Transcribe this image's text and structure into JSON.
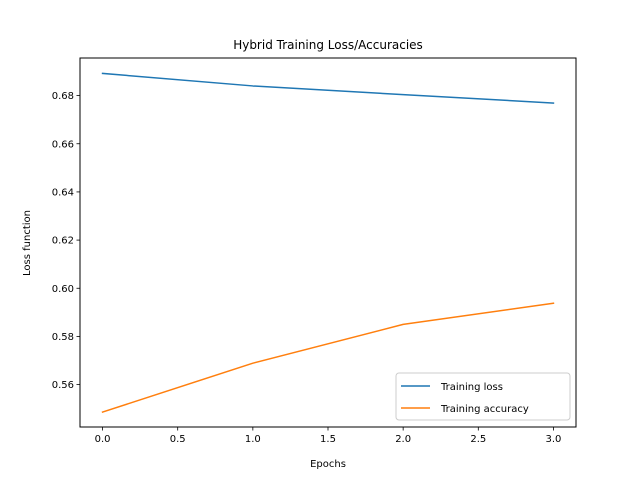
{
  "chart_data": {
    "type": "line",
    "title": "Hybrid Training Loss/Accuracies",
    "xlabel": "Epochs",
    "ylabel": "Loss function",
    "x": [
      0,
      1,
      2,
      3
    ],
    "xlim": [
      -0.15,
      3.15
    ],
    "ylim": [
      0.5424,
      0.6956
    ],
    "xticks": [
      0.0,
      0.5,
      1.0,
      1.5,
      2.0,
      2.5,
      3.0
    ],
    "xtick_labels": [
      "0.0",
      "0.5",
      "1.0",
      "1.5",
      "2.0",
      "2.5",
      "3.0"
    ],
    "yticks": [
      0.56,
      0.58,
      0.6,
      0.62,
      0.64,
      0.66,
      0.68
    ],
    "ytick_labels": [
      "0.56",
      "0.58",
      "0.60",
      "0.62",
      "0.64",
      "0.66",
      "0.68"
    ],
    "grid": false,
    "legend_position": "lower-right",
    "series": [
      {
        "name": "Training loss",
        "color": "#1f77b4",
        "values": [
          0.6892,
          0.684,
          0.6804,
          0.6769
        ]
      },
      {
        "name": "Training accuracy",
        "color": "#ff7f0e",
        "values": [
          0.5486,
          0.5689,
          0.585,
          0.5938
        ]
      }
    ]
  }
}
